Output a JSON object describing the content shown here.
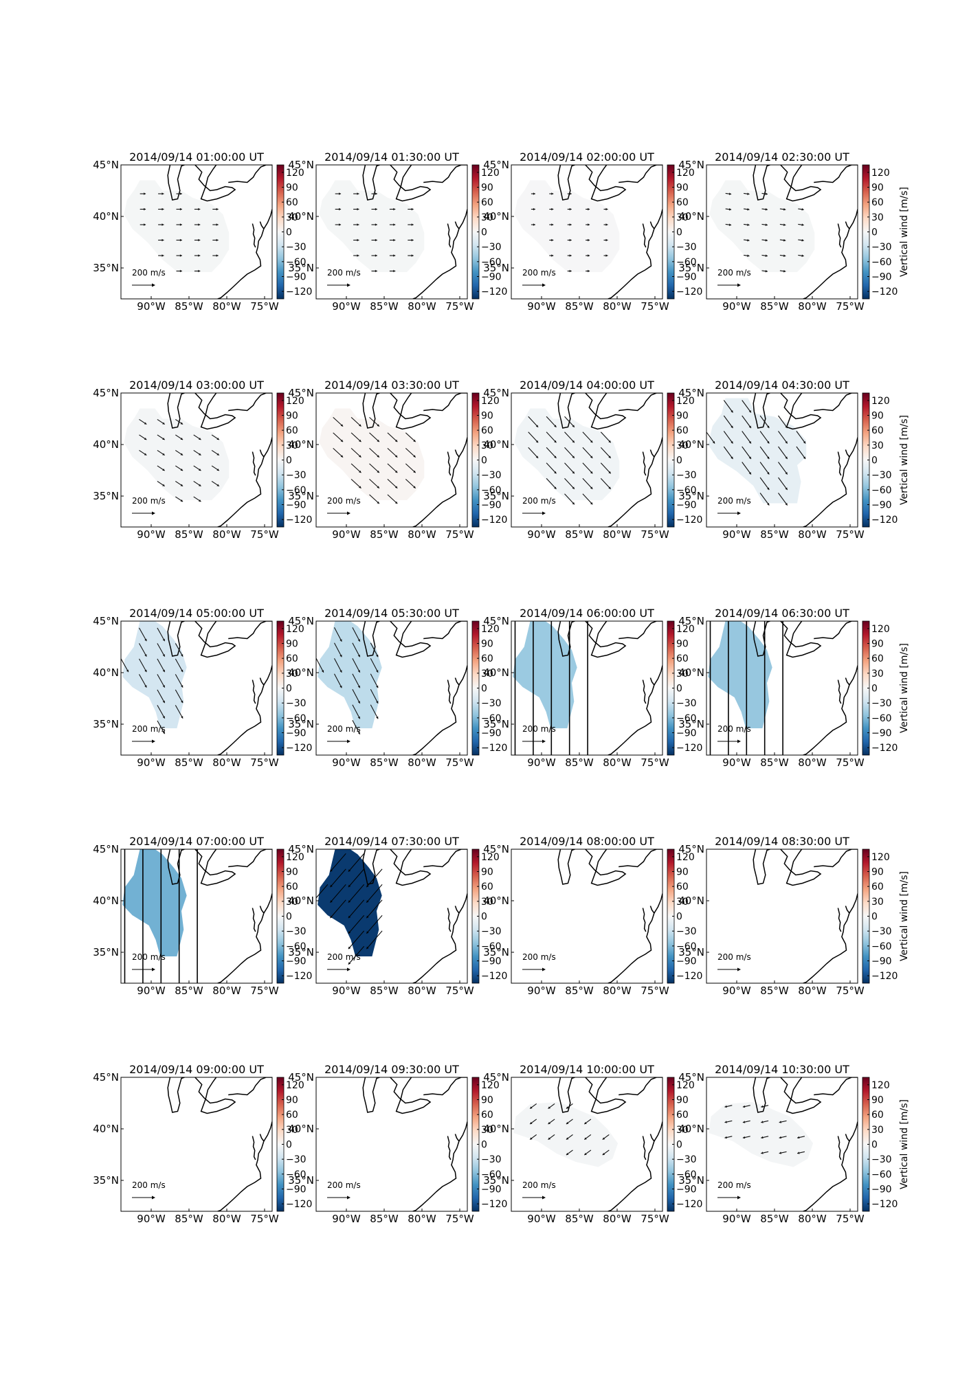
{
  "figure": {
    "panels_per_row": 4,
    "colorbar": {
      "label": "Vertical wind [m/s]",
      "ticks": [
        120,
        90,
        60,
        30,
        0,
        -30,
        -60,
        -90,
        -120
      ],
      "range": [
        -135,
        135
      ],
      "colormap": "RdBu_r",
      "colors": [
        "#053061",
        "#2166ac",
        "#4393c3",
        "#92c5de",
        "#d1e5f0",
        "#f7f7f7",
        "#fddbc7",
        "#f4a582",
        "#d6604d",
        "#b2182b",
        "#67001f"
      ]
    },
    "map": {
      "lon_range": [
        -94,
        -74
      ],
      "lat_range": [
        32,
        45
      ],
      "x_ticks": [
        "90°W",
        "85°W",
        "80°W",
        "75°W"
      ],
      "x_tick_values": [
        -90,
        -85,
        -80,
        -75
      ],
      "y_ticks": [
        "45°N",
        "40°N",
        "35°N"
      ],
      "y_tick_values": [
        45,
        40,
        35
      ],
      "scale_label": "200 m/s"
    }
  },
  "chart_data": [
    {
      "type": "heatmap",
      "title": "2014/09/14 01:00:00 UT",
      "vertical_wind": -2,
      "vector": {
        "u": 35,
        "v": 0
      },
      "region": "small",
      "streaks": false
    },
    {
      "type": "heatmap",
      "title": "2014/09/14 01:30:00 UT",
      "vertical_wind": -2,
      "vector": {
        "u": 35,
        "v": 0
      },
      "region": "small",
      "streaks": false
    },
    {
      "type": "heatmap",
      "title": "2014/09/14 02:00:00 UT",
      "vertical_wind": -1,
      "vector": {
        "u": 25,
        "v": 0
      },
      "region": "small",
      "streaks": false
    },
    {
      "type": "heatmap",
      "title": "2014/09/14 02:30:00 UT",
      "vertical_wind": -2,
      "vector": {
        "u": 35,
        "v": -5
      },
      "region": "small",
      "streaks": false
    },
    {
      "type": "heatmap",
      "title": "2014/09/14 03:00:00 UT",
      "vertical_wind": -3,
      "vector": {
        "u": 45,
        "v": -30
      },
      "region": "small",
      "streaks": false
    },
    {
      "type": "heatmap",
      "title": "2014/09/14 03:30:00 UT",
      "vertical_wind": 3,
      "vector": {
        "u": 60,
        "v": -55
      },
      "region": "small",
      "streaks": false
    },
    {
      "type": "heatmap",
      "title": "2014/09/14 04:00:00 UT",
      "vertical_wind": -5,
      "vector": {
        "u": 60,
        "v": -65
      },
      "region": "small",
      "streaks": false
    },
    {
      "type": "heatmap",
      "title": "2014/09/14 04:30:00 UT",
      "vertical_wind": -12,
      "vector": {
        "u": 55,
        "v": -75
      },
      "region": "mid",
      "streaks": false
    },
    {
      "type": "heatmap",
      "title": "2014/09/14 05:00:00 UT",
      "vertical_wind": -25,
      "vector": {
        "u": 45,
        "v": -80
      },
      "region": "west",
      "streaks": false
    },
    {
      "type": "heatmap",
      "title": "2014/09/14 05:30:00 UT",
      "vertical_wind": -35,
      "vector": {
        "u": 45,
        "v": -85
      },
      "region": "west",
      "streaks": false
    },
    {
      "type": "heatmap",
      "title": "2014/09/14 06:00:00 UT",
      "vertical_wind": -50,
      "vector": {
        "u": 0,
        "v": -900
      },
      "region": "west",
      "streaks": true
    },
    {
      "type": "heatmap",
      "title": "2014/09/14 06:30:00 UT",
      "vertical_wind": -52,
      "vector": {
        "u": 0,
        "v": -900
      },
      "region": "west",
      "streaks": true
    },
    {
      "type": "heatmap",
      "title": "2014/09/14 07:00:00 UT",
      "vertical_wind": -65,
      "vector": {
        "u": 0,
        "v": -900
      },
      "region": "west",
      "streaks": true
    },
    {
      "type": "heatmap",
      "title": "2014/09/14 07:30:00 UT",
      "vertical_wind": -130,
      "vector": {
        "u": -95,
        "v": -110
      },
      "region": "west",
      "streaks": false
    },
    {
      "type": "heatmap",
      "title": "2014/09/14 08:00:00 UT",
      "vertical_wind": null,
      "vector": null,
      "region": "none",
      "streaks": false
    },
    {
      "type": "heatmap",
      "title": "2014/09/14 08:30:00 UT",
      "vertical_wind": null,
      "vector": null,
      "region": "none",
      "streaks": false
    },
    {
      "type": "heatmap",
      "title": "2014/09/14 09:00:00 UT",
      "vertical_wind": null,
      "vector": null,
      "region": "none",
      "streaks": false
    },
    {
      "type": "heatmap",
      "title": "2014/09/14 09:30:00 UT",
      "vertical_wind": null,
      "vector": null,
      "region": "none",
      "streaks": false
    },
    {
      "type": "heatmap",
      "title": "2014/09/14 10:00:00 UT",
      "vertical_wind": -3,
      "vector": {
        "u": -40,
        "v": -30
      },
      "region": "north",
      "streaks": false
    },
    {
      "type": "heatmap",
      "title": "2014/09/14 10:30:00 UT",
      "vertical_wind": -3,
      "vector": {
        "u": -45,
        "v": -10
      },
      "region": "north",
      "streaks": false
    }
  ]
}
